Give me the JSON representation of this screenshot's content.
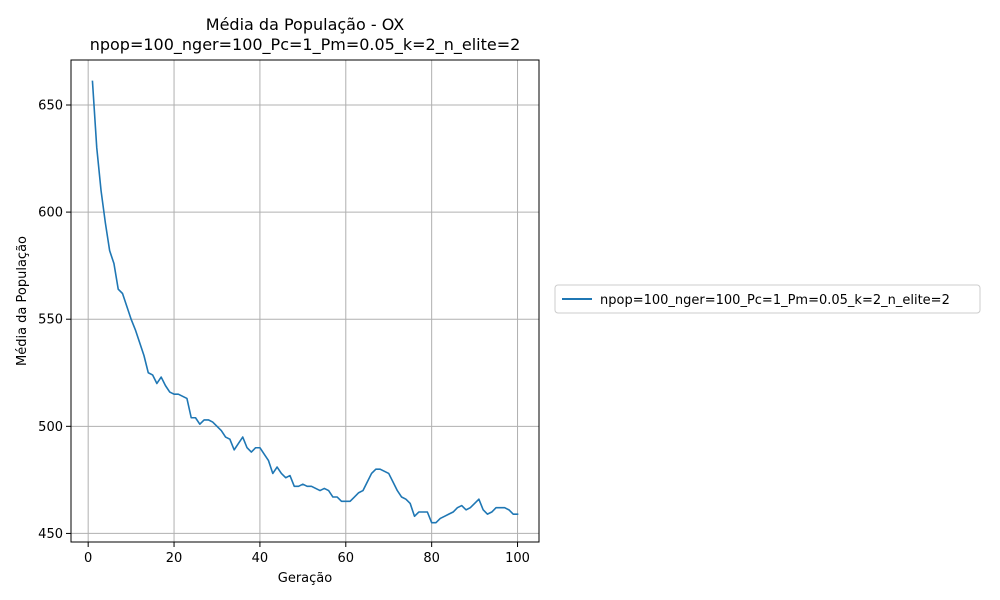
{
  "chart_data": {
    "type": "line",
    "title": "Média da População - OX",
    "subtitle": "npop=100_nger=100_Pc=1_Pm=0.05_k=2_n_elite=2",
    "xlabel": "Geração",
    "ylabel": "Média da População",
    "xlim": [
      -4,
      105
    ],
    "ylim": [
      446,
      671
    ],
    "xticks": [
      0,
      20,
      40,
      60,
      80,
      100
    ],
    "yticks": [
      450,
      500,
      550,
      600,
      650
    ],
    "grid": true,
    "legend_position": "outside-right",
    "series": [
      {
        "name": "npop=100_nger=100_Pc=1_Pm=0.05_k=2_n_elite=2",
        "color": "#1f77b4",
        "x": [
          1,
          2,
          3,
          4,
          5,
          6,
          7,
          8,
          9,
          10,
          11,
          12,
          13,
          14,
          15,
          16,
          17,
          18,
          19,
          20,
          21,
          22,
          23,
          24,
          25,
          26,
          27,
          28,
          29,
          30,
          31,
          32,
          33,
          34,
          35,
          36,
          37,
          38,
          39,
          40,
          41,
          42,
          43,
          44,
          45,
          46,
          47,
          48,
          49,
          50,
          51,
          52,
          53,
          54,
          55,
          56,
          57,
          58,
          59,
          60,
          61,
          62,
          63,
          64,
          65,
          66,
          67,
          68,
          69,
          70,
          71,
          72,
          73,
          74,
          75,
          76,
          77,
          78,
          79,
          80,
          81,
          82,
          83,
          84,
          85,
          86,
          87,
          88,
          89,
          90,
          91,
          92,
          93,
          94,
          95,
          96,
          97,
          98,
          99,
          100
        ],
        "y": [
          661,
          630,
          610,
          595,
          582,
          576,
          564,
          562,
          556,
          550,
          545,
          539,
          533,
          525,
          524,
          520,
          523,
          519,
          516,
          515,
          515,
          514,
          513,
          504,
          504,
          501,
          503,
          503,
          502,
          500,
          498,
          495,
          494,
          489,
          492,
          495,
          490,
          488,
          490,
          490,
          487,
          484,
          478,
          481,
          478,
          476,
          477,
          472,
          472,
          473,
          472,
          472,
          471,
          470,
          471,
          470,
          467,
          467,
          465,
          465,
          465,
          467,
          469,
          470,
          474,
          478,
          480,
          480,
          479,
          478,
          474,
          470,
          467,
          466,
          464,
          458,
          460,
          460,
          460,
          455,
          455,
          457,
          458,
          459,
          460,
          462,
          463,
          461,
          462,
          464,
          466,
          461,
          459,
          460,
          462,
          462,
          462,
          461,
          459,
          459
        ]
      }
    ]
  }
}
